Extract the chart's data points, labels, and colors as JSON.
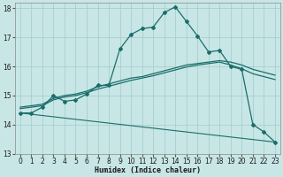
{
  "xlabel": "Humidex (Indice chaleur)",
  "xlim": [
    -0.5,
    23.5
  ],
  "ylim": [
    13,
    18.2
  ],
  "yticks": [
    13,
    14,
    15,
    16,
    17,
    18
  ],
  "xticks": [
    0,
    1,
    2,
    3,
    4,
    5,
    6,
    7,
    8,
    9,
    10,
    11,
    12,
    13,
    14,
    15,
    16,
    17,
    18,
    19,
    20,
    21,
    22,
    23
  ],
  "bg_color": "#c8e6e6",
  "grid_color": "#a0cccc",
  "line_color": "#1a6e6a",
  "line1_x": [
    0,
    1,
    2,
    3,
    4,
    5,
    6,
    7,
    8,
    9,
    10,
    11,
    12,
    13,
    14,
    15,
    16,
    17,
    18,
    19,
    20,
    21,
    22,
    23
  ],
  "line1_y": [
    14.4,
    14.4,
    14.6,
    15.0,
    14.8,
    14.85,
    15.05,
    15.35,
    15.35,
    16.6,
    17.1,
    17.3,
    17.35,
    17.85,
    18.05,
    17.55,
    17.05,
    16.5,
    16.55,
    16.0,
    15.9,
    14.0,
    13.75,
    13.4
  ],
  "line2_x": [
    0,
    1,
    2,
    3,
    4,
    5,
    6,
    7,
    8,
    9,
    10,
    11,
    12,
    13,
    14,
    15,
    16,
    17,
    18,
    19,
    20,
    21,
    22,
    23
  ],
  "line2_y": [
    14.6,
    14.65,
    14.7,
    14.9,
    15.0,
    15.05,
    15.15,
    15.3,
    15.4,
    15.5,
    15.6,
    15.65,
    15.75,
    15.85,
    15.95,
    16.05,
    16.1,
    16.15,
    16.2,
    16.15,
    16.05,
    15.9,
    15.8,
    15.7
  ],
  "line3_x": [
    0,
    1,
    2,
    3,
    4,
    5,
    6,
    7,
    8,
    9,
    10,
    11,
    12,
    13,
    14,
    15,
    16,
    17,
    18,
    19,
    20,
    21,
    22,
    23
  ],
  "line3_y": [
    14.55,
    14.6,
    14.65,
    14.85,
    14.95,
    15.0,
    15.1,
    15.22,
    15.32,
    15.42,
    15.52,
    15.6,
    15.68,
    15.78,
    15.88,
    15.98,
    16.05,
    16.1,
    16.15,
    16.05,
    15.92,
    15.75,
    15.65,
    15.55
  ],
  "line4_x": [
    0,
    23
  ],
  "line4_y": [
    14.4,
    13.4
  ]
}
